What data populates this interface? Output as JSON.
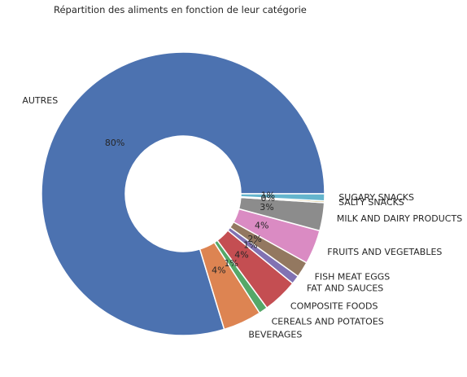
{
  "chart_data": {
    "type": "pie",
    "title": "Répartition des aliments en fonction de leur catégorie",
    "hole": true,
    "slices": [
      {
        "label": "AUTRES",
        "value": 79.7,
        "pct": "80%",
        "color": "#4c72b0"
      },
      {
        "label": "BEVERAGES",
        "value": 4.4,
        "pct": "4%",
        "color": "#dd8452"
      },
      {
        "label": "CEREALS AND POTATOES",
        "value": 1.0,
        "pct": "1%",
        "color": "#55a868"
      },
      {
        "label": "COMPOSITE FOODS",
        "value": 4.0,
        "pct": "4%",
        "color": "#c44e52"
      },
      {
        "label": "FAT AND SAUCES",
        "value": 1.0,
        "pct": "1%",
        "color": "#8172b3"
      },
      {
        "label": "FISH MEAT EGGS",
        "value": 1.8,
        "pct": "2%",
        "color": "#937860"
      },
      {
        "label": "FRUITS AND VEGETABLES",
        "value": 3.9,
        "pct": "4%",
        "color": "#da8bc3"
      },
      {
        "label": "MILK AND DAIRY PRODUCTS",
        "value": 3.2,
        "pct": "3%",
        "color": "#8c8c8c"
      },
      {
        "label": "SALTY SNACKS",
        "value": 0.2,
        "pct": "0%",
        "color": "#ccb974"
      },
      {
        "label": "SUGARY SNACKS",
        "value": 0.8,
        "pct": "1%",
        "color": "#64b5cd"
      }
    ]
  }
}
